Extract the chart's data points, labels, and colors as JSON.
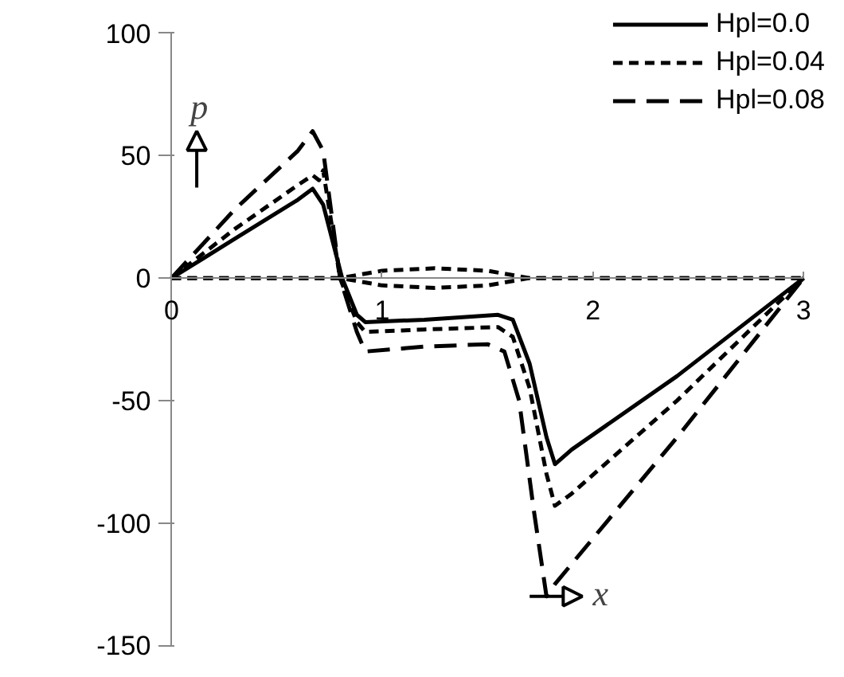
{
  "chart_data": {
    "type": "line",
    "xlabel": "x",
    "ylabel": "p",
    "xlim": [
      0,
      3
    ],
    "ylim": [
      -150,
      100
    ],
    "xticks": [
      0,
      1,
      2,
      3
    ],
    "yticks": [
      -150,
      -100,
      -50,
      0,
      50,
      100
    ],
    "grid": false,
    "legend": "top right",
    "marker": "none",
    "series": [
      {
        "name": "Hpl=0.0",
        "color": "#000000",
        "line_style": "solid",
        "x": [
          0,
          0.3,
          0.6,
          0.67,
          0.72,
          0.81,
          0.88,
          0.92,
          1.2,
          1.55,
          1.62,
          1.7,
          1.78,
          1.82,
          1.9,
          2.4,
          3
        ],
        "values": [
          0,
          16,
          32,
          36.5,
          30,
          0,
          -15,
          -18,
          -17,
          -15,
          -17,
          -35,
          -65,
          -76,
          -70,
          -40,
          0
        ]
      },
      {
        "name": "Hpl=0.04",
        "color": "#000000",
        "line_style": "dotted",
        "x": [
          0,
          0.3,
          0.6,
          0.67,
          0.7,
          0.72,
          0.8,
          0.88,
          0.92,
          1.2,
          1.55,
          1.62,
          1.7,
          1.78,
          1.82,
          1.9,
          2.4,
          3
        ],
        "values": [
          0,
          20,
          38,
          42,
          40,
          44,
          0,
          -18,
          -22,
          -21,
          -20,
          -24,
          -45,
          -80,
          -93,
          -88,
          -50,
          0
        ]
      },
      {
        "name": "Hpl=0.08",
        "color": "#000000",
        "line_style": "dashed",
        "x": [
          0,
          0.3,
          0.6,
          0.67,
          0.72,
          0.8,
          0.88,
          0.92,
          1.2,
          1.5,
          1.58,
          1.65,
          1.72,
          1.78,
          1.82,
          2.4,
          3
        ],
        "values": [
          0,
          28,
          52,
          60,
          52,
          0,
          -22,
          -30,
          -28,
          -27,
          -30,
          -50,
          -95,
          -130,
          -125,
          -65,
          0
        ]
      },
      {
        "color": "#000000",
        "line_style": "dotted",
        "x": [
          0,
          0.8,
          1.0,
          1.25,
          1.5,
          1.7,
          3
        ],
        "values": [
          0,
          0,
          3,
          4,
          3,
          0,
          0
        ]
      },
      {
        "color": "#000000",
        "line_style": "dotted",
        "x": [
          0,
          0.8,
          1.0,
          1.25,
          1.5,
          1.7,
          3
        ],
        "values": [
          0,
          0,
          -3,
          -4,
          -3,
          0,
          0
        ]
      }
    ]
  }
}
